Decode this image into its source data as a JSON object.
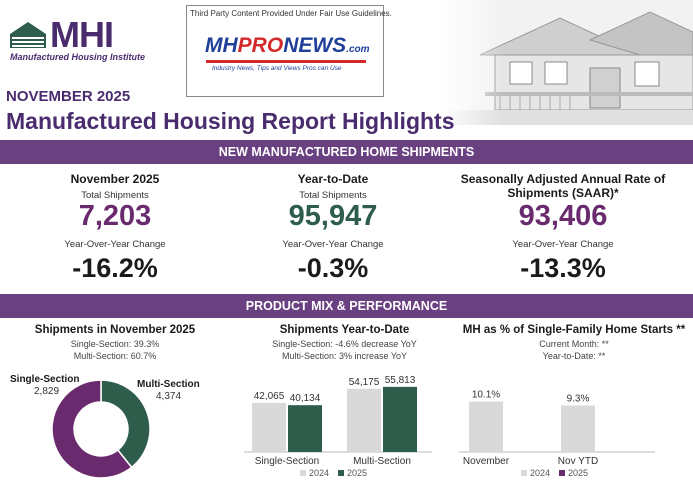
{
  "header": {
    "logo_text": "MHI",
    "logo_sub": "Manufactured Housing Institute",
    "mhp_caption": "Third Party Content Provided Under Fair Use Guidelines.",
    "mhp_mh": "MH",
    "mhp_pro": "PRO",
    "mhp_news": "NEWS",
    "mhp_com": ".com",
    "mhp_tagline": "Industry News, Tips and Views Pros can Use",
    "month": "NOVEMBER 2025",
    "title": "Manufactured Housing Report Highlights"
  },
  "colors": {
    "purple": "#6a4180",
    "value_purple": "#6a2a6e",
    "green": "#2f5d4c",
    "gray": "#d9d9d9",
    "donut_purple": "#6a2a6e"
  },
  "shipments": {
    "banner": "NEW MANUFACTURED HOME SHIPMENTS",
    "month": {
      "heading": "November 2025",
      "label": "Total Shipments",
      "value": "7,203",
      "yoy_label": "Year-Over-Year Change",
      "yoy": "-16.2%"
    },
    "ytd": {
      "heading": "Year-to-Date",
      "label": "Total Shipments",
      "value": "95,947",
      "yoy_label": "Year-Over-Year Change",
      "yoy": "-0.3%"
    },
    "saar": {
      "heading": "Seasonally Adjusted Annual Rate of Shipments (SAAR)*",
      "value": "93,406",
      "yoy_label": "Year-Over-Year Change",
      "yoy": "-13.3%"
    }
  },
  "product": {
    "banner": "PRODUCT MIX & PERFORMANCE",
    "nov": {
      "heading": "Shipments in November 2025",
      "line1": "Single-Section: 39.3%",
      "line2": "Multi-Section: 60.7%",
      "single_label": "Single-Section",
      "single_value": "2,829",
      "multi_label": "Multi-Section",
      "multi_value": "4,374"
    },
    "ytd": {
      "heading": "Shipments Year-to-Date",
      "line1": "Single-Section: -4.6% decrease YoY",
      "line2": "Multi-Section: 3% increase YoY"
    },
    "sf": {
      "heading": "MH as % of Single-Family Home Starts **",
      "line1": "Current Month: **",
      "line2": "Year-to-Date: **"
    }
  },
  "chart_data": [
    {
      "type": "pie",
      "title": "Shipments in November 2025",
      "categories": [
        "Single-Section",
        "Multi-Section"
      ],
      "values": [
        2829,
        4374
      ],
      "labels": [
        "2,829",
        "4,374"
      ]
    },
    {
      "type": "bar",
      "title": "Shipments Year-to-Date",
      "categories": [
        "Single-Section",
        "Multi-Section"
      ],
      "series": [
        {
          "name": "2024",
          "values": [
            42065,
            54175
          ],
          "labels": [
            "42,065",
            "54,175"
          ]
        },
        {
          "name": "2025",
          "values": [
            40134,
            55813
          ],
          "labels": [
            "40,134",
            "55,813"
          ]
        }
      ],
      "ylim": [
        0,
        60000
      ],
      "legend": [
        "2024",
        "2025"
      ]
    },
    {
      "type": "bar",
      "title": "MH as % of Single-Family Home Starts **",
      "categories": [
        "November",
        "Nov YTD"
      ],
      "series": [
        {
          "name": "2024",
          "values": [
            10.1,
            9.3
          ],
          "labels": [
            "10.1%",
            "9.3%"
          ]
        },
        {
          "name": "2025",
          "values": [
            null,
            null
          ],
          "labels": [
            "",
            ""
          ]
        }
      ],
      "ylim": [
        0,
        14
      ],
      "legend": [
        "2024",
        "2025"
      ]
    }
  ]
}
